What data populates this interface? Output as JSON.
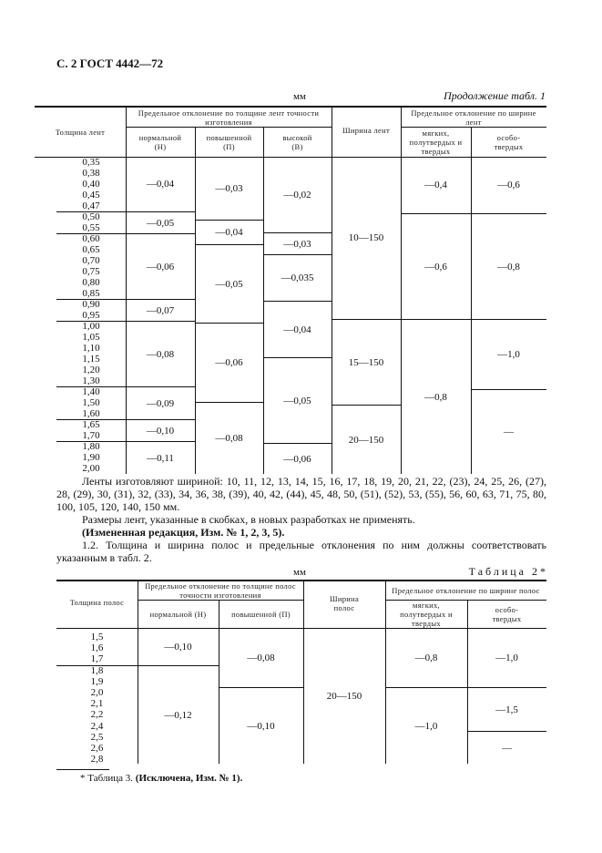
{
  "page_header": "С. 2 ГОСТ 4442—72",
  "table1": {
    "unit": "мм",
    "caption": "Продолжение табл. 1",
    "headers": {
      "thickness": "Толщина лент",
      "thickness_dev_group": "Предельное отклонение по толщине лент точности изготовления",
      "normal": "нормальной (Н)",
      "increased": "повышенной (П)",
      "high": "высокой (В)",
      "width": "Ширина лент",
      "width_dev_group": "Предельное отклонение по ширине лент",
      "soft": "мягких, полутвердых и твердых",
      "extra_hard": "особо-твердых"
    },
    "thickness_values": [
      "0,35",
      "0,38",
      "0,40",
      "0,45",
      "0,47",
      "0,50",
      "0,55",
      "0,60",
      "0,65",
      "0,70",
      "0,75",
      "0,80",
      "0,85",
      "0,90",
      "0,95",
      "1,00",
      "1,05",
      "1,10",
      "1,15",
      "1,20",
      "1,30",
      "1,40",
      "1,50",
      "1,60",
      "1,65",
      "1,70",
      "1,80",
      "1,90",
      "2,00"
    ],
    "normal": [
      "—0,04",
      "—0,05",
      "—0,06",
      "—0,07",
      "—0,08",
      "—0,09",
      "—0,10",
      "—0,11"
    ],
    "increased": [
      "—0,03",
      "—0,04",
      "—0,05",
      "—0,06",
      "—0,08"
    ],
    "high": [
      "—0,02",
      "—0,03",
      "—0,035",
      "—0,04",
      "—0,05",
      "—0,06"
    ],
    "width": [
      "10—150",
      "15—150",
      "20—150"
    ],
    "soft": [
      "—0,4",
      "—0,6",
      "—0,8"
    ],
    "extra_hard": [
      "—0,6",
      "—0,8",
      "—1,0",
      "—"
    ]
  },
  "text": {
    "widths_para": "Ленты изготовляют шириной: 10, 11, 12, 13, 14, 15, 16, 17, 18, 19, 20, 21, 22, (23), 24, 25, 26, (27), 28, (29), 30, (31), 32, (33), 34, 36, 38, (39), 40, 42, (44), 45, 48, 50, (51), (52), 53, (55), 56, 60, 63, 71, 75, 80, 100, 105, 120, 140, 150 мм.",
    "brackets_para": "Размеры лент, указанные в скобках, в новых разработках не применять.",
    "revision": "(Измененная редакция, Изм. № 1, 2, 3, 5).",
    "clause_1_2": "1.2. Толщина и ширина полос и предельные отклонения по ним должны соответствовать указанным в табл. 2."
  },
  "table2": {
    "unit": "мм",
    "caption": "Таблица 2*",
    "headers": {
      "thickness": "Толщина полос",
      "thickness_dev_group": "Предельное отклонение по толщине полос точности изготовления",
      "normal": "нормальной (Н)",
      "increased": "повышенной (П)",
      "width": "Ширина полос",
      "width_dev_group": "Предельное отклонение по ширине полос",
      "soft": "мягких, полутвердых и твердых",
      "extra_hard": "особо-твердых"
    },
    "thickness_values": [
      "1,5",
      "1,6",
      "1,7",
      "1,8",
      "1,9",
      "2,0",
      "2,1",
      "2,2",
      "2,4",
      "2,5",
      "2,6",
      "2,8"
    ],
    "normal": [
      "—0,10",
      "—0,12"
    ],
    "increased": [
      "—0,08",
      "—0,10"
    ],
    "width": [
      "20—150"
    ],
    "soft": [
      "—0,8",
      "—1,0"
    ],
    "extra_hard": [
      "—1,0",
      "—1,5",
      "—"
    ]
  },
  "footnote": {
    "prefix": "* Таблица 3. ",
    "bold": "(Исключена, Изм. № 1)."
  }
}
